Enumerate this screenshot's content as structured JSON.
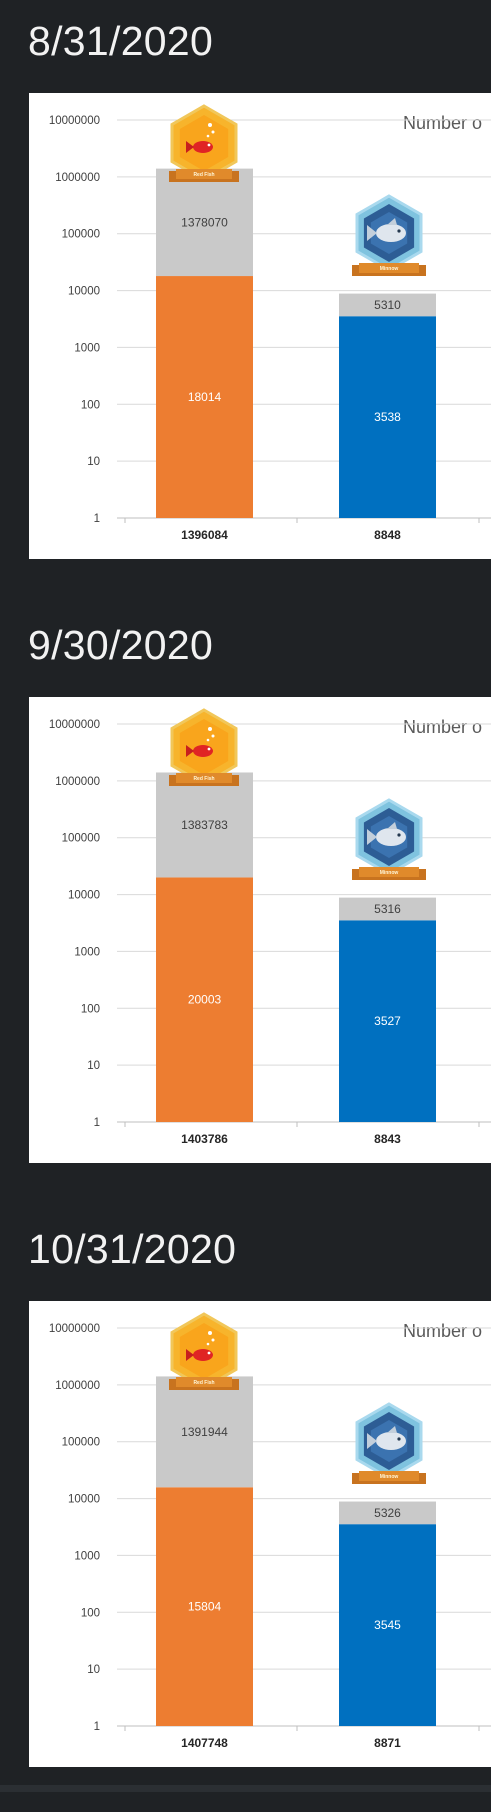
{
  "colors": {
    "background": "#1f2225",
    "card": "#ffffff",
    "grid": "#d9d9d9",
    "total_segment": "#c9c9c9",
    "red_fish_bar": "#ed7d31",
    "minnow_bar": "#0070c0"
  },
  "badges": {
    "red_fish": {
      "label": "Red Fish",
      "icon": "red-fish-icon"
    },
    "minnow": {
      "label": "Minnow",
      "icon": "minnow-fish-icon"
    }
  },
  "panels": [
    {
      "date": "8/31/2020",
      "chart_data": {
        "type": "bar",
        "stacked": true,
        "y_scale": "log",
        "ylim": [
          1,
          10000000
        ],
        "title": "Number o",
        "y_ticks": [
          "1",
          "10",
          "100",
          "1000",
          "10000",
          "100000",
          "1000000",
          "10000000"
        ],
        "categories": [
          "1396084",
          "8848"
        ],
        "bars": [
          {
            "badge": "Red Fish",
            "bottom_value": 18014,
            "top_value": 1378070,
            "total": 1396084
          },
          {
            "badge": "Minnow",
            "bottom_value": 3538,
            "top_value": 5310,
            "total": 8848
          }
        ]
      }
    },
    {
      "date": "9/30/2020",
      "chart_data": {
        "type": "bar",
        "stacked": true,
        "y_scale": "log",
        "ylim": [
          1,
          10000000
        ],
        "title": "Number o",
        "y_ticks": [
          "1",
          "10",
          "100",
          "1000",
          "10000",
          "100000",
          "1000000",
          "10000000"
        ],
        "categories": [
          "1403786",
          "8843"
        ],
        "bars": [
          {
            "badge": "Red Fish",
            "bottom_value": 20003,
            "top_value": 1383783,
            "total": 1403786
          },
          {
            "badge": "Minnow",
            "bottom_value": 3527,
            "top_value": 5316,
            "total": 8843
          }
        ]
      }
    },
    {
      "date": "10/31/2020",
      "chart_data": {
        "type": "bar",
        "stacked": true,
        "y_scale": "log",
        "ylim": [
          1,
          10000000
        ],
        "title": "Number o",
        "y_ticks": [
          "1",
          "10",
          "100",
          "1000",
          "10000",
          "100000",
          "1000000",
          "10000000"
        ],
        "categories": [
          "1407748",
          "8871"
        ],
        "bars": [
          {
            "badge": "Red Fish",
            "bottom_value": 15804,
            "top_value": 1391944,
            "total": 1407748
          },
          {
            "badge": "Minnow",
            "bottom_value": 3545,
            "top_value": 5326,
            "total": 8871
          }
        ]
      }
    }
  ]
}
